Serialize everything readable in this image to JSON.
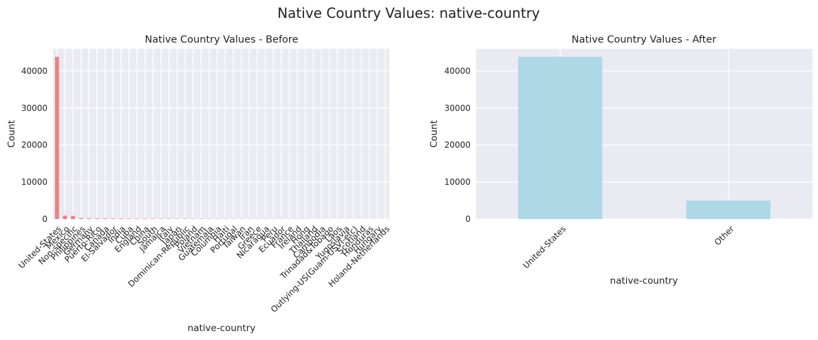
{
  "suptitle": "Native Country Values: native-country",
  "colors": {
    "before_bar": "#f08080",
    "after_bar": "#add8e6",
    "plot_bg": "#eaeaf2",
    "grid": "#ffffff"
  },
  "chart_data": [
    {
      "type": "bar",
      "title": "Native Country Values - Before",
      "xlabel": "native-country",
      "ylabel": "Count",
      "ylim": [
        0,
        46000
      ],
      "yticks": [
        0,
        10000,
        20000,
        30000,
        40000
      ],
      "grid": true,
      "categories": [
        "United-States",
        "Mexico",
        "Non-specific",
        "Philippines",
        "Germany",
        "Puerto-Rico",
        "Canada",
        "El-Salvador",
        "India",
        "Cuba",
        "England",
        "China",
        "South",
        "Jamaica",
        "Italy",
        "Japan",
        "Dominican-Republic",
        "Poland",
        "Vietnam",
        "Guatemala",
        "Columbia",
        "Haiti",
        "Portugal",
        "Taiwan",
        "Iran",
        "Greece",
        "Nicaragua",
        "Peru",
        "Ecuador",
        "France",
        "Ireland",
        "Hong",
        "Thailand",
        "Cambodia",
        "Trinadad&Tobago",
        "Laos",
        "Yugoslavia",
        "Outlying-US(Guam-USVI-etc)",
        "Scotland",
        "Honduras",
        "Hungary",
        "Holand-Netherlands"
      ],
      "values": [
        43832,
        951,
        857,
        295,
        206,
        184,
        182,
        155,
        151,
        138,
        127,
        122,
        115,
        106,
        105,
        92,
        103,
        87,
        86,
        88,
        85,
        75,
        67,
        65,
        59,
        49,
        49,
        46,
        45,
        38,
        37,
        30,
        30,
        28,
        27,
        23,
        23,
        23,
        21,
        20,
        19,
        1
      ]
    },
    {
      "type": "bar",
      "title": "Native Country Values - After",
      "xlabel": "native-country",
      "ylabel": "Count",
      "ylim": [
        0,
        46000
      ],
      "yticks": [
        0,
        10000,
        20000,
        30000,
        40000
      ],
      "grid": true,
      "categories": [
        "United-States",
        "Other"
      ],
      "values": [
        43832,
        5010
      ]
    }
  ]
}
